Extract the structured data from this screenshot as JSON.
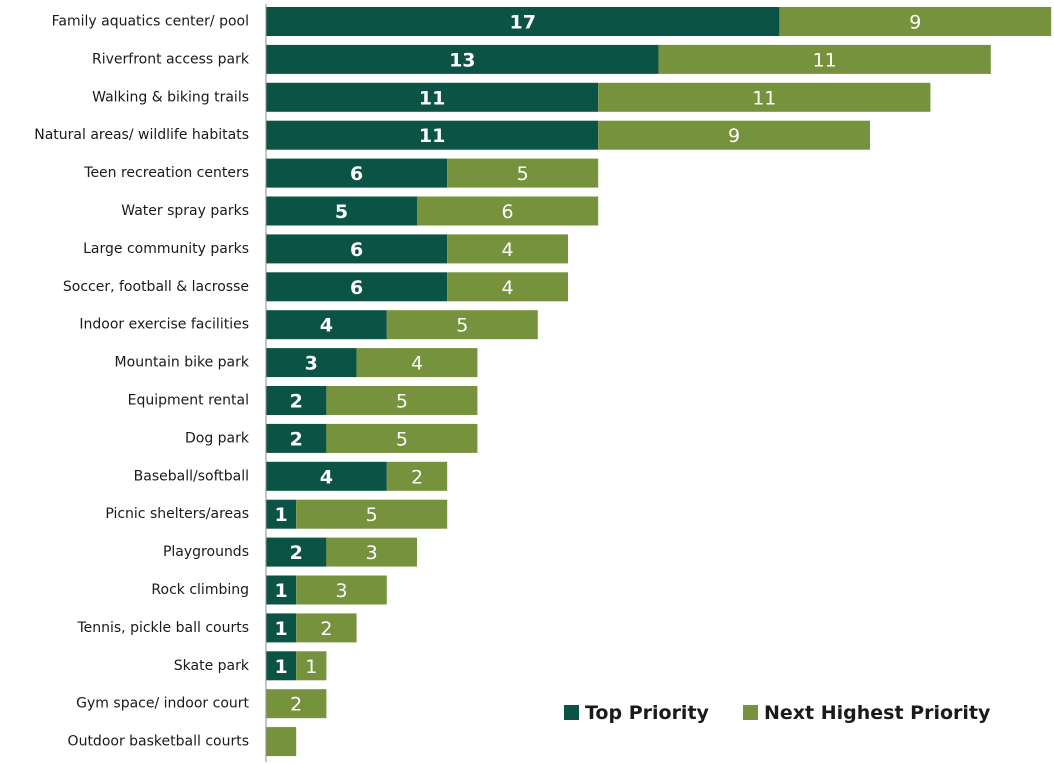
{
  "chart_data": {
    "type": "bar",
    "orientation": "horizontal",
    "stacked": true,
    "categories": [
      "Family aquatics center/ pool",
      "Riverfront access park",
      "Walking & biking trails",
      "Natural areas/ wildlife habitats",
      "Teen recreation centers",
      "Water spray parks",
      "Large community parks",
      "Soccer, football & lacrosse",
      "Indoor exercise facilities",
      "Mountain bike park",
      "Equipment rental",
      "Dog park",
      "Baseball/softball",
      "Picnic shelters/areas",
      "Playgrounds",
      "Rock climbing",
      "Tennis, pickle ball courts",
      "Skate park",
      "Gym space/ indoor court",
      "Outdoor basketball courts"
    ],
    "series": [
      {
        "name": "Top Priority",
        "color": "#0b5345",
        "values": [
          17,
          13,
          11,
          11,
          6,
          5,
          6,
          6,
          4,
          3,
          2,
          2,
          4,
          1,
          2,
          1,
          1,
          1,
          0,
          0
        ],
        "labels": [
          "17",
          "13",
          "11",
          "11",
          "6",
          "5",
          "6",
          "6",
          "4",
          "3",
          "2",
          "2",
          "4",
          "1",
          "2",
          "1",
          "1",
          "1",
          "",
          ""
        ]
      },
      {
        "name": "Next Highest Priority",
        "color": "#76923c",
        "values": [
          9,
          11,
          11,
          9,
          5,
          6,
          4,
          4,
          5,
          4,
          5,
          5,
          2,
          5,
          3,
          3,
          2,
          1,
          2,
          1
        ],
        "labels": [
          "9",
          "11",
          "11",
          "9",
          "5",
          "6",
          "4",
          "4",
          "5",
          "4",
          "5",
          "5",
          "2",
          "5",
          "3",
          "3",
          "2",
          "1",
          "2",
          ""
        ]
      }
    ],
    "xlim": [
      0,
      26
    ],
    "grid": false,
    "legend_position": "bottom-right"
  }
}
